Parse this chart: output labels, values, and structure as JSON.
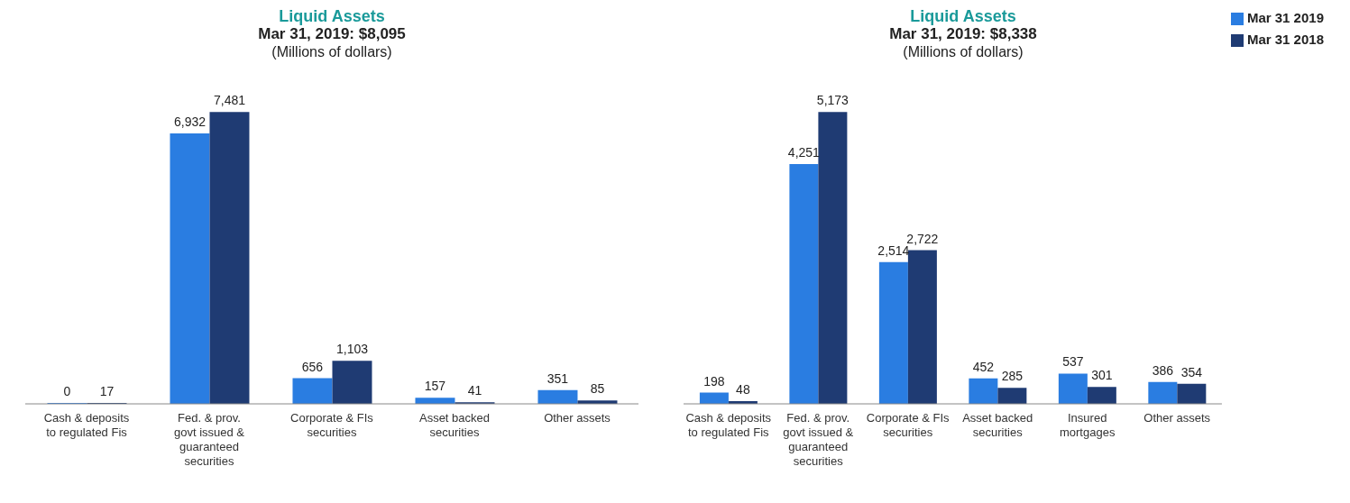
{
  "chart_data": [
    {
      "type": "bar",
      "title": "Liquid Assets",
      "subtitle": "Mar 31, 2019: $8,095",
      "annotations": [
        "(Millions of dollars)"
      ],
      "categories": [
        "Cash & deposits to regulated Fis",
        "Fed. & prov. govt issued & guaranteed securities",
        "Corporate & FIs securities",
        "Asset backed securities",
        "Other assets"
      ],
      "series": [
        {
          "color": "#2a7de1",
          "values": [
            0,
            6932,
            656,
            157,
            351
          ],
          "value_labels": [
            "0",
            "6,932",
            "656",
            "157",
            "351"
          ]
        },
        {
          "color": "#1f3b73",
          "values": [
            17,
            7481,
            1103,
            41,
            85
          ],
          "value_labels": [
            "17",
            "7,481",
            "1,103",
            "41",
            "85"
          ]
        }
      ],
      "legend": false,
      "grid": false
    },
    {
      "type": "bar",
      "title": "Liquid Assets",
      "subtitle": "Mar 31, 2019: $8,338",
      "annotations": [
        "(Millions of dollars)"
      ],
      "categories": [
        "Cash & deposits to regulated Fis",
        "Fed. & prov. govt issued & guaranteed securities",
        "Corporate & FIs securities",
        "Asset backed securities",
        "Insured mortgages",
        "Other assets"
      ],
      "series": [
        {
          "name": "Mar 31 2019",
          "color": "#2a7de1",
          "values": [
            198,
            4251,
            2514,
            452,
            537,
            386
          ],
          "value_labels": [
            "198",
            "4,251",
            "2,514",
            "452",
            "537",
            "386"
          ]
        },
        {
          "name": "Mar 31 2018",
          "color": "#1f3b73",
          "values": [
            48,
            5173,
            2722,
            285,
            301,
            354
          ],
          "value_labels": [
            "48",
            "5,173",
            "2,722",
            "285",
            "301",
            "354"
          ]
        }
      ],
      "legend": "top right",
      "grid": false
    }
  ]
}
